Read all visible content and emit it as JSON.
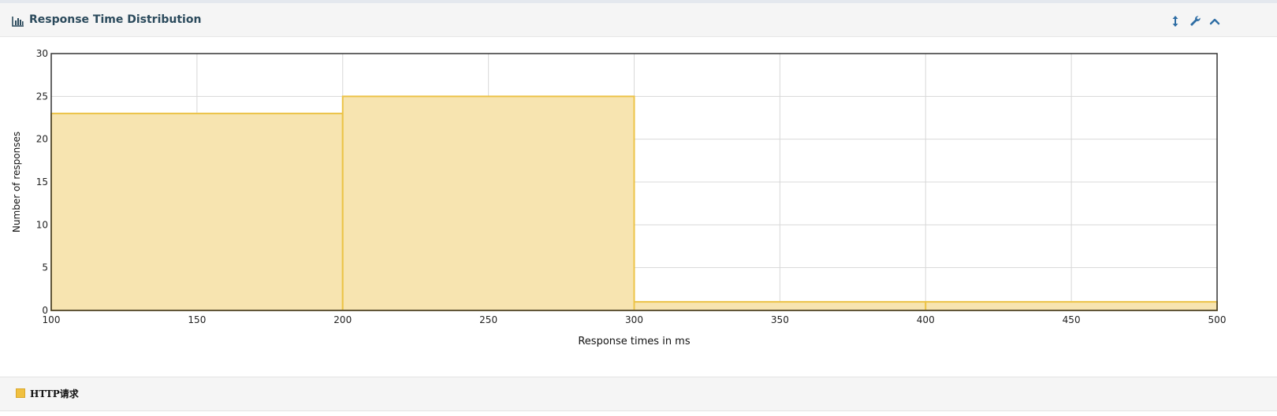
{
  "panel": {
    "title": "Response Time Distribution",
    "icons": {
      "title": "bar-chart-icon",
      "resize": "vertical-resize-icon",
      "settings": "wrench-icon",
      "collapse": "chevron-up-icon"
    }
  },
  "colors": {
    "fill": "#f7e4b0",
    "stroke": "#ecc347",
    "accent": "#2e6da4"
  },
  "chart_data": {
    "type": "bar",
    "title": "",
    "xlabel": "Response times in ms",
    "ylabel": "Number of responses",
    "xlim": [
      100,
      500
    ],
    "ylim": [
      0,
      30
    ],
    "xticks": [
      100,
      150,
      200,
      250,
      300,
      350,
      400,
      450,
      500
    ],
    "yticks": [
      0,
      5,
      10,
      15,
      20,
      25,
      30
    ],
    "grid": true,
    "legend_position": "bottom",
    "series": [
      {
        "name": "HTTP请求",
        "bins": [
          {
            "start": 100,
            "end": 200,
            "value": 23
          },
          {
            "start": 200,
            "end": 300,
            "value": 25
          },
          {
            "start": 300,
            "end": 400,
            "value": 1
          },
          {
            "start": 400,
            "end": 500,
            "value": 1
          }
        ]
      }
    ]
  }
}
